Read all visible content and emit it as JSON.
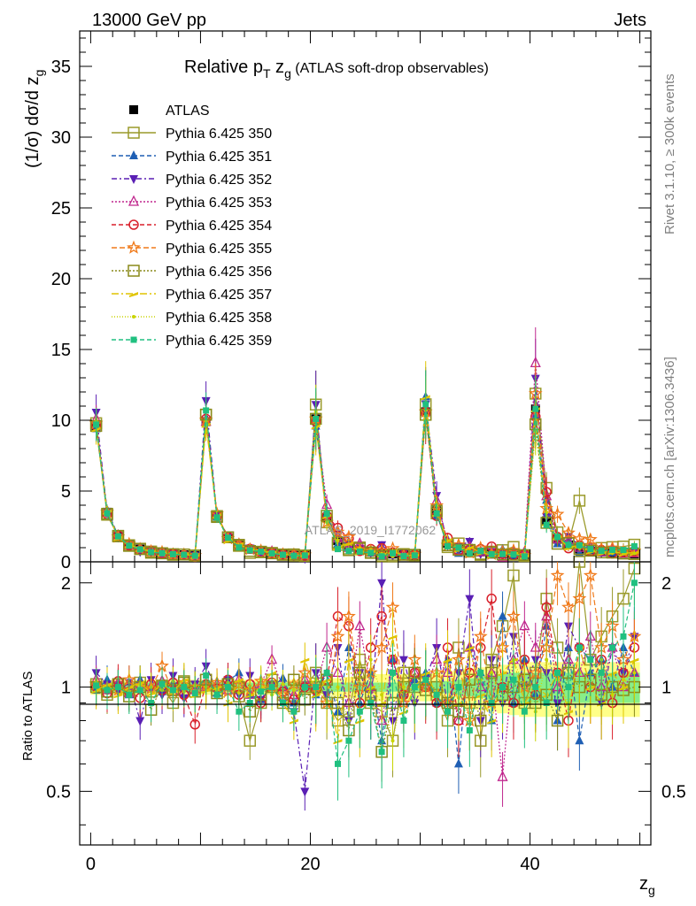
{
  "header": {
    "left": "13000 GeV pp",
    "right": "Jets",
    "title_main": "Relative p",
    "title_sub_T": "T",
    "title_zg": " z",
    "title_sub_g": "g",
    "title_paren": " (ATLAS soft-drop observables)"
  },
  "side": {
    "rivet": "Rivet 3.1.10, ≥ 300k events",
    "mcplots": "mcplots.cern.ch [arXiv:1306.3436]"
  },
  "watermark": "ATLAS_2019_I1772062",
  "axes": {
    "ylabel_top": "(1/σ) dσ/d z",
    "ylabel_top_sub": "g",
    "ylabel_bottom": "Ratio to ATLAS",
    "xlabel": "z",
    "xlabel_sub": "g"
  },
  "colors": {
    "atlas": "#000000",
    "s350": "#9a9a2a",
    "s351": "#1f5fb4",
    "s352": "#5a1fb4",
    "s353": "#c0278e",
    "s354": "#d81f2a",
    "s355": "#f07a1a",
    "s356": "#8a8a1a",
    "s357": "#e0c400",
    "s358": "#c8d400",
    "s359": "#20c080",
    "band_outer": "#ffff88",
    "band_inner": "#88ee88"
  },
  "chart_data": {
    "type": "line",
    "xlim": [
      -1,
      51
    ],
    "ylim_top": [
      0,
      37.5
    ],
    "ylim_bottom": [
      0.35,
      2.3
    ],
    "x_ticks": [
      "0",
      "20",
      "40"
    ],
    "y_ticks_top": [
      "0",
      "5",
      "10",
      "15",
      "20",
      "25",
      "30",
      "35"
    ],
    "y_ticks_bottom": [
      "0.5",
      "1",
      "2"
    ],
    "bins_x": [
      0.5,
      1.5,
      2.5,
      3.5,
      4.5,
      5.5,
      6.5,
      7.5,
      8.5,
      9.5,
      10.5,
      11.5,
      12.5,
      13.5,
      14.5,
      15.5,
      16.5,
      17.5,
      18.5,
      19.5,
      20.5,
      21.5,
      22.5,
      23.5,
      24.5,
      25.5,
      26.5,
      27.5,
      28.5,
      29.5,
      30.5,
      31.5,
      32.5,
      33.5,
      34.5,
      35.5,
      36.5,
      37.5,
      38.5,
      39.5,
      40.5,
      41.5,
      42.5,
      43.5,
      44.5,
      45.5,
      46.5,
      47.5,
      48.5,
      49.5
    ],
    "atlas": [
      9.6,
      3.5,
      1.8,
      1.2,
      0.9,
      0.75,
      0.6,
      0.55,
      0.5,
      0.45,
      9.9,
      3.3,
      1.7,
      1.2,
      0.9,
      0.75,
      0.6,
      0.55,
      0.5,
      0.45,
      10.1,
      3.1,
      1.5,
      1.1,
      0.85,
      0.7,
      0.6,
      0.55,
      0.5,
      0.45,
      10.6,
      3.6,
      1.3,
      1.0,
      0.8,
      0.7,
      0.6,
      0.55,
      0.5,
      0.45,
      10.8,
      2.9,
      1.6,
      1.2,
      0.9,
      0.75,
      0.7,
      0.65,
      0.6,
      0.55
    ],
    "series": [
      {
        "name": "ATLAS",
        "key": "atlas",
        "marker": "filled-square"
      },
      {
        "name": "Pythia 6.425 350",
        "key": "s350",
        "marker": "open-square",
        "scale": [
          1.02,
          0.95,
          1.0,
          0.98,
          1.03,
          0.97,
          1.0,
          0.9,
          1.04,
          1.0,
          1.05,
          0.98,
          1.02,
          0.94,
          0.7,
          0.9,
          1.05,
          0.95,
          0.88,
          1.0,
          1.1,
          0.9,
          0.8,
          0.85,
          1.2,
          0.9,
          0.85,
          0.7,
          1.1,
          1.0,
          1.05,
          0.95,
          0.8,
          1.3,
          0.9,
          0.7,
          1.2,
          1.5,
          2.1,
          0.9,
          1.1,
          1.8,
          1.3,
          1.1,
          4.8,
          1.2,
          1.4,
          1.6,
          1.8,
          2.2
        ],
        "err": 0.12
      },
      {
        "name": "Pythia 6.425 351",
        "key": "s351",
        "marker": "up-triangle",
        "scale": [
          0.98,
          1.05,
          1.02,
          0.95,
          1.05,
          1.0,
          0.97,
          1.03,
          0.99,
          1.01,
          1.02,
          0.96,
          1.04,
          1.1,
          0.95,
          0.92,
          1.0,
          1.06,
          0.9,
          1.02,
          0.95,
          1.1,
          0.85,
          1.3,
          0.9,
          1.1,
          0.7,
          1.2,
          0.95,
          1.05,
          1.1,
          0.9,
          1.2,
          0.6,
          1.3,
          1.1,
          0.8,
          1.6,
          0.9,
          1.2,
          0.95,
          1.5,
          0.8,
          1.3,
          0.7,
          1.1,
          1.2,
          1.0,
          1.3,
          1.1
        ],
        "err": 0.1
      },
      {
        "name": "Pythia 6.425 352",
        "key": "s352",
        "marker": "down-triangle",
        "scale": [
          1.1,
          1.02,
          0.97,
          1.03,
          0.8,
          1.05,
          0.95,
          1.08,
          0.93,
          1.02,
          1.15,
          0.98,
          1.05,
          0.95,
          1.08,
          0.92,
          1.02,
          0.9,
          0.85,
          0.5,
          1.1,
          0.95,
          1.3,
          0.8,
          1.1,
          0.9,
          2.0,
          0.8,
          1.2,
          0.9,
          1.05,
          1.3,
          0.9,
          1.1,
          1.8,
          0.8,
          1.2,
          0.9,
          1.4,
          1.0,
          1.2,
          1.1,
          0.9,
          1.5,
          1.3,
          1.2,
          0.9,
          1.3,
          1.1,
          1.4
        ],
        "err": 0.12
      },
      {
        "name": "Pythia 6.425 353",
        "key": "s353",
        "marker": "open-up-triangle",
        "scale": [
          1.05,
          0.98,
          1.03,
          0.96,
          1.02,
          1.0,
          1.04,
          0.97,
          1.01,
          0.98,
          1.0,
          1.02,
          0.98,
          1.05,
          0.95,
          1.02,
          1.2,
          1.0,
          0.95,
          1.05,
          1.0,
          1.3,
          1.1,
          0.9,
          1.5,
          1.0,
          0.8,
          1.2,
          0.9,
          1.1,
          1.0,
          1.2,
          1.1,
          0.8,
          1.3,
          1.0,
          1.1,
          0.55,
          1.2,
          1.5,
          1.3,
          1.6,
          1.0,
          1.2,
          1.1,
          1.4,
          1.0,
          1.3,
          1.0,
          1.1
        ],
        "err": 0.1
      },
      {
        "name": "Pythia 6.425 354",
        "key": "s354",
        "marker": "open-circle",
        "scale": [
          1.0,
          0.96,
          1.04,
          0.97,
          0.93,
          1.02,
          0.98,
          1.03,
          0.95,
          0.78,
          1.02,
          0.99,
          1.05,
          0.95,
          1.02,
          0.9,
          1.03,
          0.97,
          0.92,
          1.0,
          0.98,
          1.05,
          1.6,
          1.5,
          0.9,
          1.3,
          1.6,
          1.2,
          0.95,
          1.1,
          1.0,
          0.9,
          1.3,
          0.8,
          1.1,
          1.3,
          1.8,
          1.0,
          0.9,
          1.2,
          0.95,
          1.7,
          1.1,
          0.8,
          1.3,
          1.0,
          1.2,
          0.9,
          1.1,
          1.3
        ],
        "err": 0.12
      },
      {
        "name": "Pythia 6.425 355",
        "key": "s355",
        "marker": "open-star",
        "scale": [
          1.02,
          1.0,
          0.98,
          1.05,
          1.01,
          0.99,
          1.15,
          0.97,
          1.03,
          1.0,
          1.01,
          1.03,
          0.97,
          1.02,
          0.98,
          1.04,
          1.0,
          0.95,
          1.02,
          1.1,
          1.0,
          0.9,
          1.4,
          1.6,
          1.0,
          1.1,
          1.3,
          1.7,
          0.9,
          1.2,
          1.0,
          1.1,
          0.9,
          1.2,
          0.8,
          1.4,
          0.9,
          1.3,
          1.6,
          1.0,
          1.1,
          1.3,
          2.1,
          1.7,
          1.8,
          2.1,
          1.3,
          1.5,
          1.2,
          1.4
        ],
        "err": 0.1
      },
      {
        "name": "Pythia 6.425 356",
        "key": "s356",
        "marker": "open-square-dotted",
        "scale": [
          1.0,
          0.97,
          1.02,
          0.94,
          1.0,
          0.86,
          1.01,
          0.98,
          1.03,
          0.97,
          1.05,
          0.96,
          1.02,
          1.0,
          0.85,
          0.95,
          1.0,
          0.9,
          1.05,
          0.92,
          1.0,
          1.05,
          0.9,
          0.75,
          1.1,
          0.95,
          0.65,
          0.9,
          1.0,
          1.1,
          0.98,
          1.0,
          0.9,
          0.85,
          1.05,
          0.8,
          1.1,
          0.95,
          1.0,
          1.05,
          0.9,
          0.95,
          0.8,
          1.1,
          1.0,
          1.05,
          0.95,
          1.0,
          0.98,
          1.0
        ],
        "err": 0.1
      },
      {
        "name": "Pythia 6.425 357",
        "key": "s357",
        "marker": "dash-dot",
        "scale": [
          0.98,
          1.02,
          0.95,
          1.0,
          1.03,
          0.96,
          1.02,
          0.97,
          1.05,
          0.95,
          0.98,
          1.0,
          0.9,
          1.05,
          0.95,
          1.0,
          1.1,
          0.9,
          0.8,
          1.2,
          0.95,
          1.05,
          0.7,
          1.2,
          0.8,
          1.0,
          0.9,
          1.4,
          0.85,
          1.0,
          1.1,
          0.95,
          1.2,
          0.9,
          1.3,
          0.95,
          0.8,
          1.1,
          1.2,
          0.9,
          1.0,
          0.95,
          1.1,
          0.85,
          1.3,
          1.0,
          0.9,
          1.1,
          1.0,
          1.2
        ],
        "err": 0.12
      },
      {
        "name": "Pythia 6.425 358",
        "key": "s358",
        "marker": "dotted",
        "scale": [
          1.03,
          0.99,
          1.0,
          0.97,
          1.02,
          1.0,
          0.98,
          1.04,
          0.97,
          1.01,
          1.0,
          0.98,
          1.03,
          0.96,
          1.0,
          1.05,
          0.95,
          1.02,
          0.98,
          1.0,
          1.05,
          0.9,
          1.0,
          0.8,
          1.1,
          1.2,
          0.95,
          0.7,
          1.0,
          0.9,
          1.05,
          1.1,
          0.9,
          1.0,
          0.8,
          1.05,
          1.1,
          0.9,
          1.2,
          1.0,
          0.85,
          1.2,
          1.05,
          0.9,
          1.1,
          1.0,
          1.2,
          0.95,
          1.05,
          1.1
        ],
        "err": 0.1
      },
      {
        "name": "Pythia 6.425 359",
        "key": "s359",
        "marker": "filled-small-square",
        "scale": [
          1.01,
          0.98,
          1.0,
          0.95,
          0.98,
          0.9,
          1.02,
          0.98,
          1.0,
          0.96,
          1.08,
          0.95,
          1.0,
          0.85,
          0.9,
          0.97,
          1.0,
          0.9,
          0.85,
          1.0,
          1.0,
          1.1,
          0.6,
          0.7,
          0.85,
          0.9,
          0.65,
          1.1,
          0.8,
          1.0,
          1.05,
          0.95,
          0.85,
          1.0,
          0.75,
          1.1,
          0.9,
          1.0,
          1.05,
          0.85,
          1.0,
          0.9,
          1.1,
          1.0,
          1.3,
          1.2,
          1.1,
          1.3,
          1.4,
          2.0
        ],
        "err": 0.12
      }
    ],
    "band_inner_halfwidth": [
      0.03,
      0.03,
      0.03,
      0.03,
      0.03,
      0.03,
      0.03,
      0.03,
      0.03,
      0.03,
      0.03,
      0.03,
      0.03,
      0.03,
      0.03,
      0.03,
      0.03,
      0.03,
      0.03,
      0.03,
      0.03,
      0.03,
      0.03,
      0.03,
      0.03,
      0.03,
      0.03,
      0.03,
      0.03,
      0.03,
      0.03,
      0.03,
      0.04,
      0.05,
      0.06,
      0.07,
      0.08,
      0.09,
      0.1,
      0.1,
      0.1,
      0.1,
      0.1,
      0.1,
      0.1,
      0.1,
      0.1,
      0.1,
      0.1,
      0.1
    ],
    "band_outer_halfwidth": [
      0.05,
      0.05,
      0.05,
      0.05,
      0.05,
      0.05,
      0.05,
      0.05,
      0.05,
      0.05,
      0.05,
      0.05,
      0.05,
      0.05,
      0.05,
      0.05,
      0.05,
      0.05,
      0.05,
      0.05,
      0.05,
      0.05,
      0.06,
      0.07,
      0.08,
      0.09,
      0.09,
      0.09,
      0.09,
      0.09,
      0.09,
      0.1,
      0.11,
      0.12,
      0.13,
      0.14,
      0.15,
      0.16,
      0.17,
      0.18,
      0.18,
      0.18,
      0.18,
      0.18,
      0.18,
      0.18,
      0.18,
      0.18,
      0.18,
      0.18
    ],
    "legend_position": "top-left"
  }
}
